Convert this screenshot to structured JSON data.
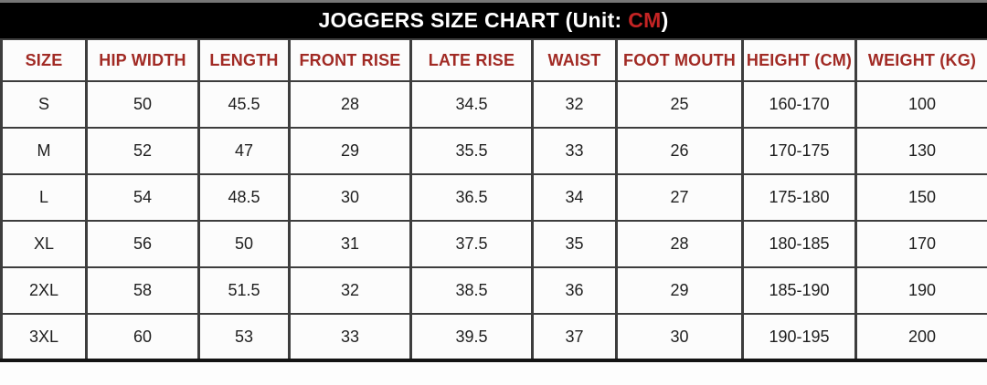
{
  "title": {
    "prefix": "JOGGERS SIZE CHART (Unit: ",
    "unit": "CM",
    "suffix": ")"
  },
  "colors": {
    "title_bar_bg": "#000000",
    "title_text": "#ffffff",
    "unit_accent": "#c42424",
    "header_text": "#a12a24",
    "grid_line": "#3d3d3d",
    "cell_text": "#1f1f1f"
  },
  "table": {
    "headers": [
      "SIZE",
      "HIP WIDTH",
      "LENGTH",
      "FRONT RISE",
      "LATE RISE",
      "WAIST",
      "FOOT MOUTH",
      "HEIGHT (CM)",
      "WEIGHT (KG)"
    ],
    "rows": [
      [
        "S",
        "50",
        "45.5",
        "28",
        "34.5",
        "32",
        "25",
        "160-170",
        "100"
      ],
      [
        "M",
        "52",
        "47",
        "29",
        "35.5",
        "33",
        "26",
        "170-175",
        "130"
      ],
      [
        "L",
        "54",
        "48.5",
        "30",
        "36.5",
        "34",
        "27",
        "175-180",
        "150"
      ],
      [
        "XL",
        "56",
        "50",
        "31",
        "37.5",
        "35",
        "28",
        "180-185",
        "170"
      ],
      [
        "2XL",
        "58",
        "51.5",
        "32",
        "38.5",
        "36",
        "29",
        "185-190",
        "190"
      ],
      [
        "3XL",
        "60",
        "53",
        "33",
        "39.5",
        "37",
        "30",
        "190-195",
        "200"
      ]
    ]
  },
  "chart_data": {
    "type": "table",
    "title": "JOGGERS SIZE CHART (Unit: CM)",
    "unit": "CM",
    "columns": [
      "SIZE",
      "HIP WIDTH",
      "LENGTH",
      "FRONT RISE",
      "LATE RISE",
      "WAIST",
      "FOOT MOUTH",
      "HEIGHT (CM)",
      "WEIGHT (KG)"
    ],
    "rows": [
      [
        "S",
        50,
        45.5,
        28,
        34.5,
        32,
        25,
        "160-170",
        100
      ],
      [
        "M",
        52,
        47,
        29,
        35.5,
        33,
        26,
        "170-175",
        130
      ],
      [
        "L",
        54,
        48.5,
        30,
        36.5,
        34,
        27,
        "175-180",
        150
      ],
      [
        "XL",
        56,
        50,
        31,
        37.5,
        35,
        28,
        "180-185",
        170
      ],
      [
        "2XL",
        58,
        51.5,
        32,
        38.5,
        36,
        29,
        "185-190",
        190
      ],
      [
        "3XL",
        60,
        53,
        33,
        39.5,
        37,
        30,
        "190-195",
        200
      ]
    ]
  }
}
